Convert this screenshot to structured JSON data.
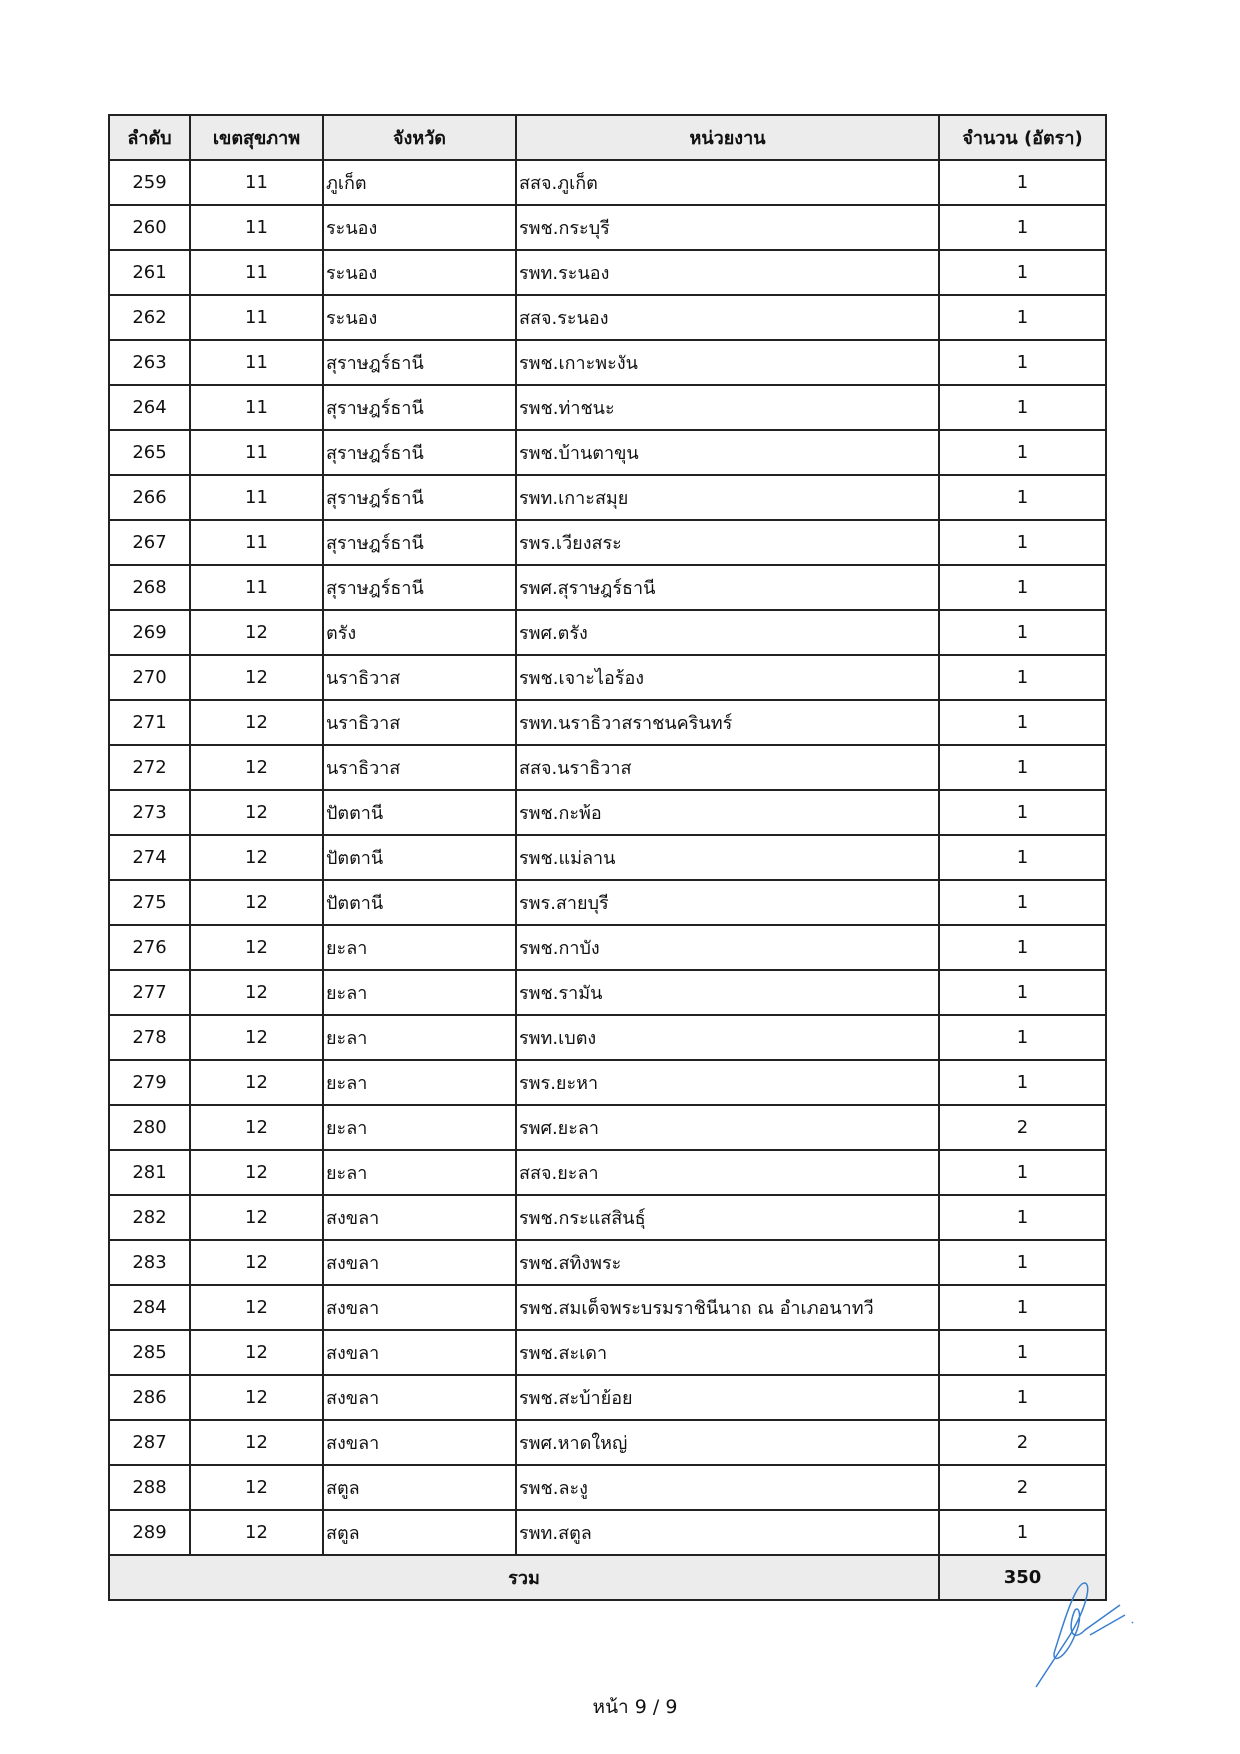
{
  "table": {
    "headers": [
      "ลำดับ",
      "เขตสุขภาพ",
      "จังหวัด",
      "หน่วยงาน",
      "จำนวน (อัตรา)"
    ],
    "rows": [
      [
        "259",
        "11",
        "ภูเก็ต",
        "สสจ.ภูเก็ต",
        "1"
      ],
      [
        "260",
        "11",
        "ระนอง",
        "รพช.กระบุรี",
        "1"
      ],
      [
        "261",
        "11",
        "ระนอง",
        "รพท.ระนอง",
        "1"
      ],
      [
        "262",
        "11",
        "ระนอง",
        "สสจ.ระนอง",
        "1"
      ],
      [
        "263",
        "11",
        "สุราษฎร์ธานี",
        "รพช.เกาะพะงัน",
        "1"
      ],
      [
        "264",
        "11",
        "สุราษฎร์ธานี",
        "รพช.ท่าชนะ",
        "1"
      ],
      [
        "265",
        "11",
        "สุราษฎร์ธานี",
        "รพช.บ้านตาขุน",
        "1"
      ],
      [
        "266",
        "11",
        "สุราษฎร์ธานี",
        "รพท.เกาะสมุย",
        "1"
      ],
      [
        "267",
        "11",
        "สุราษฎร์ธานี",
        "รพร.เวียงสระ",
        "1"
      ],
      [
        "268",
        "11",
        "สุราษฎร์ธานี",
        "รพศ.สุราษฎร์ธานี",
        "1"
      ],
      [
        "269",
        "12",
        "ตรัง",
        "รพศ.ตรัง",
        "1"
      ],
      [
        "270",
        "12",
        "นราธิวาส",
        "รพช.เจาะไอร้อง",
        "1"
      ],
      [
        "271",
        "12",
        "นราธิวาส",
        "รพท.นราธิวาสราชนครินทร์",
        "1"
      ],
      [
        "272",
        "12",
        "นราธิวาส",
        "สสจ.นราธิวาส",
        "1"
      ],
      [
        "273",
        "12",
        "ปัตตานี",
        "รพช.กะพ้อ",
        "1"
      ],
      [
        "274",
        "12",
        "ปัตตานี",
        "รพช.แม่ลาน",
        "1"
      ],
      [
        "275",
        "12",
        "ปัตตานี",
        "รพร.สายบุรี",
        "1"
      ],
      [
        "276",
        "12",
        "ยะลา",
        "รพช.กาบัง",
        "1"
      ],
      [
        "277",
        "12",
        "ยะลา",
        "รพช.รามัน",
        "1"
      ],
      [
        "278",
        "12",
        "ยะลา",
        "รพท.เบตง",
        "1"
      ],
      [
        "279",
        "12",
        "ยะลา",
        "รพร.ยะหา",
        "1"
      ],
      [
        "280",
        "12",
        "ยะลา",
        "รพศ.ยะลา",
        "2"
      ],
      [
        "281",
        "12",
        "ยะลา",
        "สสจ.ยะลา",
        "1"
      ],
      [
        "282",
        "12",
        "สงขลา",
        "รพช.กระแสสินธุ์",
        "1"
      ],
      [
        "283",
        "12",
        "สงขลา",
        "รพช.สทิงพระ",
        "1"
      ],
      [
        "284",
        "12",
        "สงขลา",
        "รพช.สมเด็จพระบรมราชินีนาถ ณ อำเภอนาทวี",
        "1"
      ],
      [
        "285",
        "12",
        "สงขลา",
        "รพช.สะเดา",
        "1"
      ],
      [
        "286",
        "12",
        "สงขลา",
        "รพช.สะบ้าย้อย",
        "1"
      ],
      [
        "287",
        "12",
        "สงขลา",
        "รพศ.หาดใหญ่",
        "2"
      ],
      [
        "288",
        "12",
        "สตูล",
        "รพช.ละงู",
        "2"
      ],
      [
        "289",
        "12",
        "สตูล",
        "รพท.สตูล",
        "1"
      ]
    ],
    "total_label": "รวม",
    "total_value": "350"
  },
  "footer": {
    "page": "หน้า 9 / 9"
  },
  "colors": {
    "header_bg": "#ececec",
    "signature": "#3a7fd0"
  }
}
